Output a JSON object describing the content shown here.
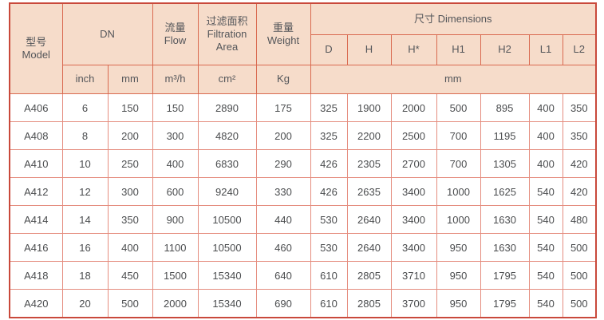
{
  "table": {
    "header": {
      "model_zh": "型号",
      "model_en": "Model",
      "dn": "DN",
      "flow_zh": "流量",
      "flow_en": "Flow",
      "area_zh": "过滤面积",
      "area_en": "Filtration Area",
      "weight_zh": "重量",
      "weight_en": "Weight",
      "dimensions": "尺寸 Dimensions",
      "dim_cols": [
        "D",
        "H",
        "H*",
        "H1",
        "H2",
        "L1",
        "L2"
      ],
      "unit_inch": "inch",
      "unit_mm": "mm",
      "unit_flow": "m³/h",
      "unit_area": "cm²",
      "unit_weight": "Kg",
      "unit_dims": "mm"
    },
    "col_keys": [
      "model",
      "dn-inch",
      "dn-mm",
      "flow",
      "filtration-area",
      "weight",
      "dim-d",
      "dim-h",
      "dim-hstar",
      "dim-h1",
      "dim-h2",
      "dim-l1",
      "dim-l2"
    ],
    "rows": [
      [
        "A406",
        "6",
        "150",
        "150",
        "2890",
        "175",
        "325",
        "1900",
        "2000",
        "500",
        "895",
        "400",
        "350"
      ],
      [
        "A408",
        "8",
        "200",
        "300",
        "4820",
        "200",
        "325",
        "2200",
        "2500",
        "700",
        "1195",
        "400",
        "350"
      ],
      [
        "A410",
        "10",
        "250",
        "400",
        "6830",
        "290",
        "426",
        "2305",
        "2700",
        "700",
        "1305",
        "400",
        "420"
      ],
      [
        "A412",
        "12",
        "300",
        "600",
        "9240",
        "330",
        "426",
        "2635",
        "3400",
        "1000",
        "1625",
        "540",
        "420"
      ],
      [
        "A414",
        "14",
        "350",
        "900",
        "10500",
        "440",
        "530",
        "2640",
        "3400",
        "1000",
        "1630",
        "540",
        "480"
      ],
      [
        "A416",
        "16",
        "400",
        "1100",
        "10500",
        "460",
        "530",
        "2640",
        "3400",
        "950",
        "1630",
        "540",
        "500"
      ],
      [
        "A418",
        "18",
        "450",
        "1500",
        "15340",
        "640",
        "610",
        "2805",
        "3710",
        "950",
        "1795",
        "540",
        "500"
      ],
      [
        "A420",
        "20",
        "500",
        "2000",
        "15340",
        "690",
        "610",
        "2805",
        "3700",
        "950",
        "1795",
        "540",
        "500"
      ]
    ],
    "colors": {
      "header_bg": "#f6dcca",
      "outer_border": "#c9493b",
      "header_border": "#d96a50",
      "body_border": "#e58d7f",
      "header_text": "#54565a",
      "body_text": "#4b4d4f"
    }
  }
}
